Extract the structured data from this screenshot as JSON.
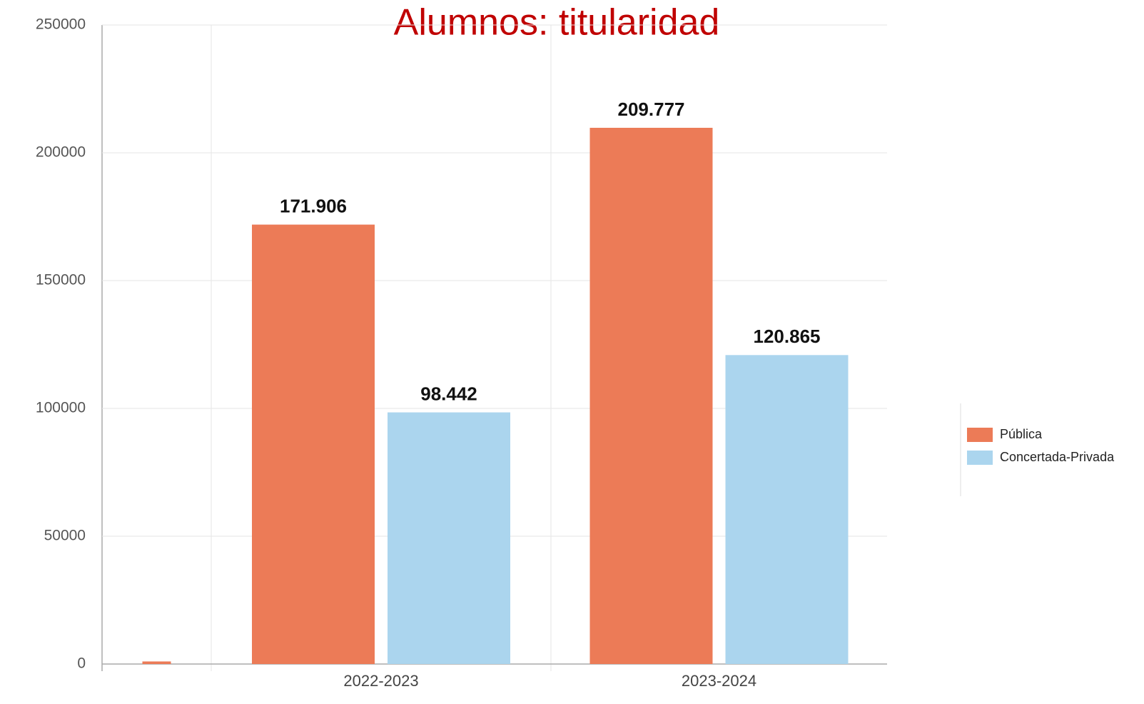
{
  "chart_data": {
    "type": "bar",
    "title": "Alumnos: titularidad",
    "categories": [
      null,
      "2022-2023",
      "2023-2024"
    ],
    "series": [
      {
        "name": "Pública",
        "color": "#ec7b57",
        "values": [
          1000,
          171906,
          209777
        ],
        "value_labels": [
          null,
          "171.906",
          "209.777"
        ]
      },
      {
        "name": "Concertada-Privada",
        "color": "#abd5ee",
        "values": [
          null,
          98442,
          120865
        ],
        "value_labels": [
          null,
          "98.442",
          "120.865"
        ]
      }
    ],
    "ylim": [
      0,
      250000
    ],
    "yticks": [
      0,
      50000,
      100000,
      150000,
      200000,
      250000
    ],
    "grid": true,
    "legend": "right"
  }
}
